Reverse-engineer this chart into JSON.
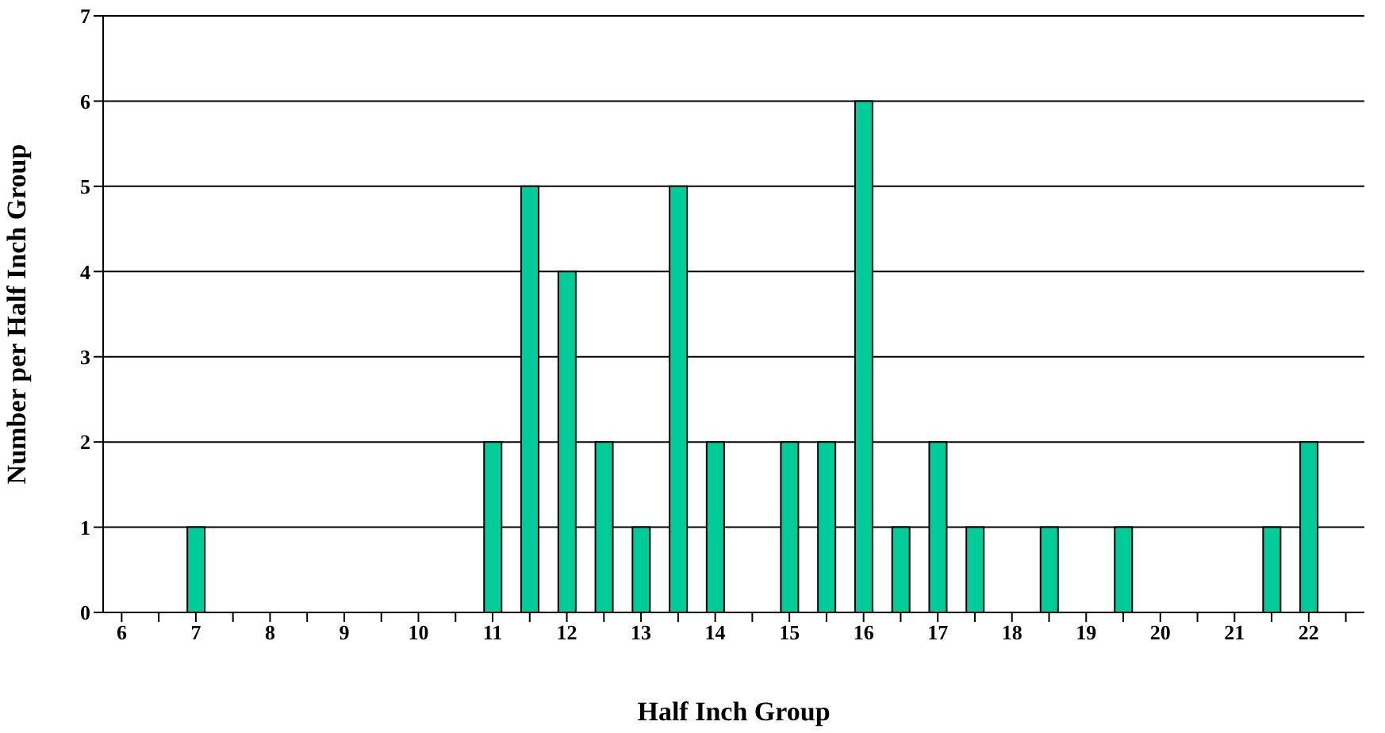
{
  "chart_data": {
    "type": "bar",
    "xlabel": "Half Inch Group",
    "ylabel": "Number per Half Inch Group",
    "categories": [
      "6",
      null,
      "7",
      null,
      "8",
      null,
      "9",
      null,
      "10",
      null,
      "11",
      null,
      "12",
      null,
      "13",
      null,
      "14",
      null,
      "15",
      null,
      "16",
      null,
      "17",
      null,
      "18",
      null,
      "19",
      null,
      "20",
      null,
      "21",
      null,
      "22",
      null
    ],
    "values": [
      0,
      0,
      1,
      0,
      0,
      0,
      0,
      0,
      0,
      0,
      2,
      5,
      4,
      2,
      1,
      5,
      2,
      0,
      2,
      2,
      6,
      1,
      2,
      1,
      0,
      1,
      0,
      1,
      0,
      0,
      0,
      1,
      2,
      0
    ],
    "color": "#00cc99",
    "ylim": [
      0,
      7
    ],
    "yticks": [
      0,
      1,
      2,
      3,
      4,
      5,
      6,
      7
    ],
    "grid": "y"
  }
}
